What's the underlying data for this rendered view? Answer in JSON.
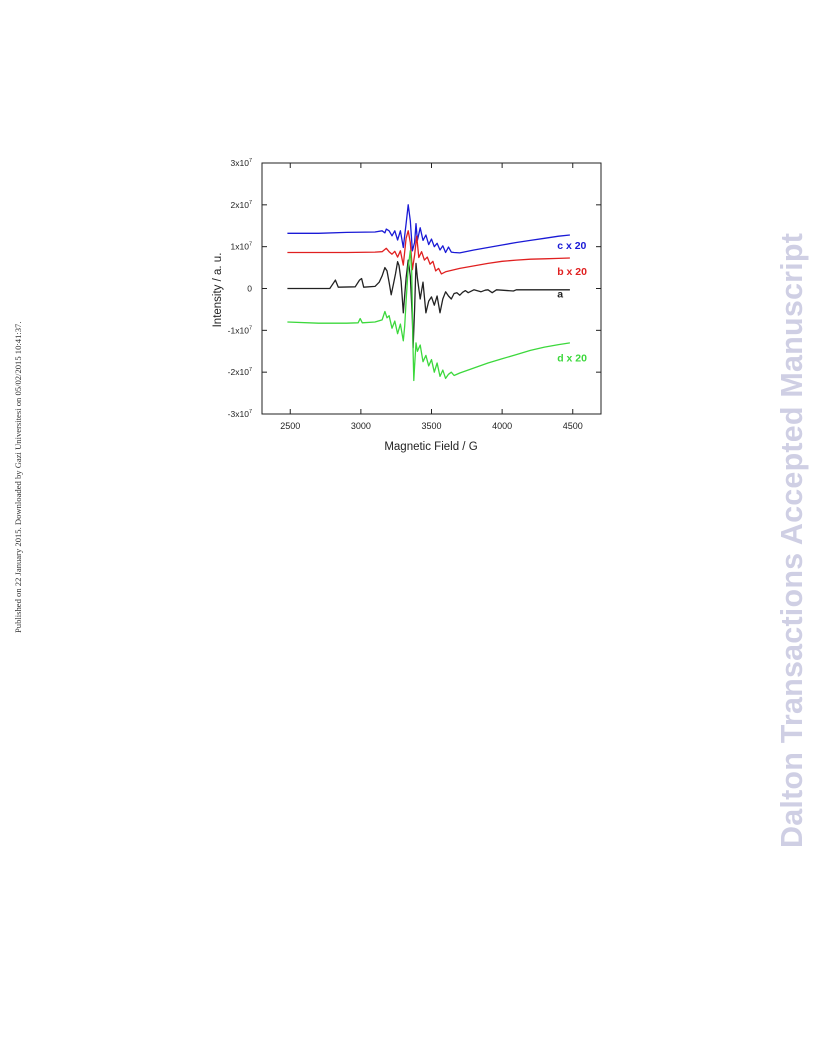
{
  "side_note": "Published on 22 January 2015. Downloaded by Gazi Universitesi on 05/02/2015 10:41:37.",
  "watermark": "Dalton Transactions Accepted Manuscript",
  "chart_data": {
    "type": "line",
    "xlabel": "Magnetic Field / G",
    "ylabel": "Intensity / a. u.",
    "xlim": [
      2300,
      4700
    ],
    "ylim": [
      -30000000.0,
      30000000.0
    ],
    "xticks": [
      {
        "value": 2500,
        "label": "2500"
      },
      {
        "value": 3000,
        "label": "3000"
      },
      {
        "value": 3500,
        "label": "3500"
      },
      {
        "value": 4000,
        "label": "4000"
      },
      {
        "value": 4500,
        "label": "4500"
      }
    ],
    "yticks": [
      {
        "value": 30000000,
        "mant": "3x10",
        "exp": "7"
      },
      {
        "value": 20000000,
        "mant": "2x10",
        "exp": "7"
      },
      {
        "value": 10000000,
        "mant": "1x10",
        "exp": "7"
      },
      {
        "value": 0,
        "mant": "0",
        "exp": ""
      },
      {
        "value": -10000000,
        "mant": "-1x10",
        "exp": "7"
      },
      {
        "value": -20000000,
        "mant": "-2x10",
        "exp": "7"
      },
      {
        "value": -30000000,
        "mant": "-3x10",
        "exp": "7"
      }
    ],
    "grid": false,
    "legend": "inline labels on right",
    "series": [
      {
        "name": "c x 20",
        "color": "#1a1ad6",
        "label_x": 4390,
        "label_y": 9500000,
        "x": [
          2480,
          2700,
          2900,
          3100,
          3150,
          3170,
          3180,
          3200,
          3220,
          3240,
          3260,
          3280,
          3300,
          3320,
          3335,
          3350,
          3365,
          3380,
          3390,
          3400,
          3420,
          3440,
          3460,
          3480,
          3500,
          3520,
          3540,
          3560,
          3580,
          3600,
          3620,
          3640,
          3660,
          3700,
          3800,
          3900,
          4000,
          4100,
          4200,
          4300,
          4400,
          4480
        ],
        "y": [
          13200000,
          13200000,
          13400000,
          13500000,
          13800000,
          13300000,
          14200000,
          13800000,
          12600000,
          13800000,
          11600000,
          13800000,
          9800000,
          15500000,
          20000000,
          16200000,
          9000000,
          11000000,
          15500000,
          11500000,
          14500000,
          11500000,
          12800000,
          10500000,
          11800000,
          10000000,
          10800000,
          9200000,
          10200000,
          8600000,
          9900000,
          8700000,
          8600000,
          8500000,
          9200000,
          9800000,
          10400000,
          11000000,
          11500000,
          12000000,
          12500000,
          12800000
        ]
      },
      {
        "name": "b x 20",
        "color": "#e02020",
        "label_x": 4390,
        "label_y": 3200000,
        "x": [
          2480,
          2700,
          2900,
          3100,
          3150,
          3180,
          3200,
          3220,
          3240,
          3260,
          3280,
          3300,
          3320,
          3335,
          3350,
          3365,
          3380,
          3395,
          3410,
          3430,
          3450,
          3470,
          3490,
          3510,
          3530,
          3550,
          3570,
          3600,
          3700,
          3800,
          3900,
          4000,
          4100,
          4200,
          4300,
          4400,
          4480
        ],
        "y": [
          8600000,
          8600000,
          8600000,
          8700000,
          8800000,
          9600000,
          8800000,
          8200000,
          8900000,
          7500000,
          9000000,
          5600000,
          12000000,
          13800000,
          11000000,
          4500000,
          8000000,
          12500000,
          7400000,
          8800000,
          6800000,
          7500000,
          5800000,
          6500000,
          4200000,
          4800000,
          3500000,
          4000000,
          4800000,
          5400000,
          6000000,
          6500000,
          6800000,
          7000000,
          7100000,
          7200000,
          7300000
        ]
      },
      {
        "name": "a",
        "color": "#222222",
        "label_x": 4390,
        "label_y": -2200000,
        "x": [
          2480,
          2780,
          2800,
          2820,
          2840,
          2960,
          2990,
          3005,
          3020,
          3100,
          3130,
          3150,
          3170,
          3185,
          3200,
          3215,
          3230,
          3245,
          3260,
          3270,
          3285,
          3300,
          3320,
          3335,
          3350,
          3365,
          3370,
          3380,
          3390,
          3400,
          3420,
          3440,
          3460,
          3480,
          3500,
          3520,
          3540,
          3560,
          3580,
          3600,
          3620,
          3640,
          3660,
          3680,
          3700,
          3720,
          3740,
          3760,
          3800,
          3850,
          3880,
          3900,
          3930,
          3960,
          4000,
          4080,
          4100,
          4120,
          4200,
          4480
        ],
        "y": [
          0,
          0,
          1000000,
          2000000,
          300000,
          400000,
          2000000,
          2400000,
          300000,
          500000,
          1500000,
          3000000,
          5000000,
          4200000,
          1500000,
          -1500000,
          1000000,
          3500000,
          6400000,
          5500000,
          1800000,
          -5800000,
          2500000,
          6800000,
          3000000,
          -7500000,
          -14200000,
          -5000000,
          6000000,
          2500000,
          -2500000,
          1500000,
          -5800000,
          -3000000,
          -2000000,
          -4000000,
          -1800000,
          -5800000,
          -2500000,
          -800000,
          -1800000,
          -2500000,
          -1200000,
          -1000000,
          -1600000,
          -900000,
          -500000,
          -1000000,
          -300000,
          -800000,
          -400000,
          -300000,
          -1000000,
          -300000,
          -400000,
          -600000,
          -300000,
          -300000,
          -300000,
          -300000
        ]
      },
      {
        "name": "d x 20",
        "color": "#3cd83c",
        "label_x": 4390,
        "label_y": -17500000,
        "x": [
          2480,
          2700,
          2900,
          2980,
          2995,
          3010,
          3100,
          3150,
          3170,
          3185,
          3200,
          3220,
          3240,
          3260,
          3280,
          3300,
          3310,
          3320,
          3335,
          3350,
          3360,
          3370,
          3375,
          3380,
          3390,
          3400,
          3420,
          3440,
          3460,
          3480,
          3500,
          3520,
          3540,
          3560,
          3580,
          3600,
          3620,
          3640,
          3660,
          3700,
          3800,
          3900,
          4000,
          4100,
          4200,
          4300,
          4400,
          4480
        ],
        "y": [
          -8000000,
          -8300000,
          -8300000,
          -8200000,
          -7200000,
          -8200000,
          -8000000,
          -7500000,
          -5500000,
          -7000000,
          -6500000,
          -9500000,
          -7800000,
          -10800000,
          -8500000,
          -12500000,
          -9000000,
          -3000000,
          5000000,
          9000000,
          4000000,
          -15000000,
          -22000000,
          -18500000,
          -13000000,
          -15000000,
          -13500000,
          -17500000,
          -16000000,
          -18500000,
          -17000000,
          -20000000,
          -17800000,
          -21000000,
          -19500000,
          -21500000,
          -20500000,
          -20000000,
          -20800000,
          -20200000,
          -19000000,
          -17800000,
          -16800000,
          -15800000,
          -14800000,
          -14000000,
          -13400000,
          -13000000
        ]
      }
    ]
  }
}
